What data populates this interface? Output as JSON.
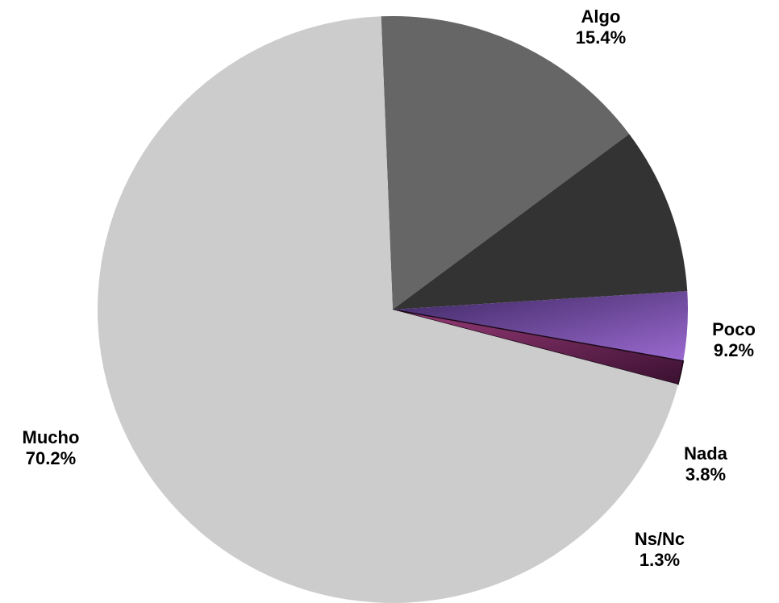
{
  "chart_data": {
    "type": "pie",
    "slices": [
      {
        "label": "Mucho",
        "value": 70.2,
        "display": "70.2%",
        "color": "#cccccc"
      },
      {
        "label": "Algo",
        "value": 15.4,
        "display": "15.4%",
        "color": "#666666"
      },
      {
        "label": "Poco",
        "value": 9.2,
        "display": "9.2%",
        "color": "#333333"
      },
      {
        "label": "Nada",
        "value": 3.8,
        "display": "3.8%",
        "color": "#8e5fbf"
      },
      {
        "label": "Ns/Nc",
        "value": 1.3,
        "display": "1.3%",
        "color": "#7a2a5f"
      }
    ],
    "legend": "none"
  }
}
